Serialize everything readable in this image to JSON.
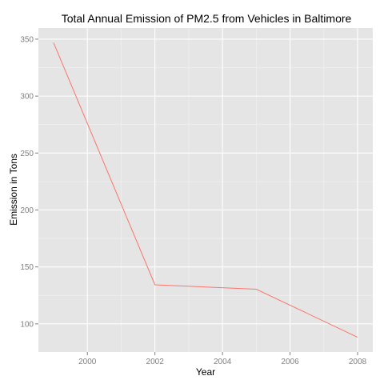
{
  "chart_data": {
    "type": "line",
    "title": "Total Annual Emission of PM2.5 from Vehicles in Baltimore",
    "xlabel": "Year",
    "ylabel": "Emission in Tons",
    "x": [
      1999,
      2002,
      2005,
      2008
    ],
    "series": [
      {
        "values": [
          346.82,
          134.31,
          130.43,
          88.28
        ],
        "color": "#F8766D"
      }
    ],
    "xticks": [
      2000,
      2002,
      2004,
      2006,
      2008
    ],
    "xtick_labels": [
      "2000",
      "2002",
      "2004",
      "2006",
      "2008"
    ],
    "yticks": [
      100,
      150,
      200,
      250,
      300,
      350
    ],
    "ytick_labels": [
      "100",
      "150",
      "200",
      "250",
      "300",
      "350"
    ],
    "xlim": [
      1998.55,
      2008.45
    ],
    "ylim": [
      75.3,
      359.8
    ],
    "grid": true,
    "panel_background": "#E5E5E5",
    "grid_color": "#FFFFFF"
  }
}
